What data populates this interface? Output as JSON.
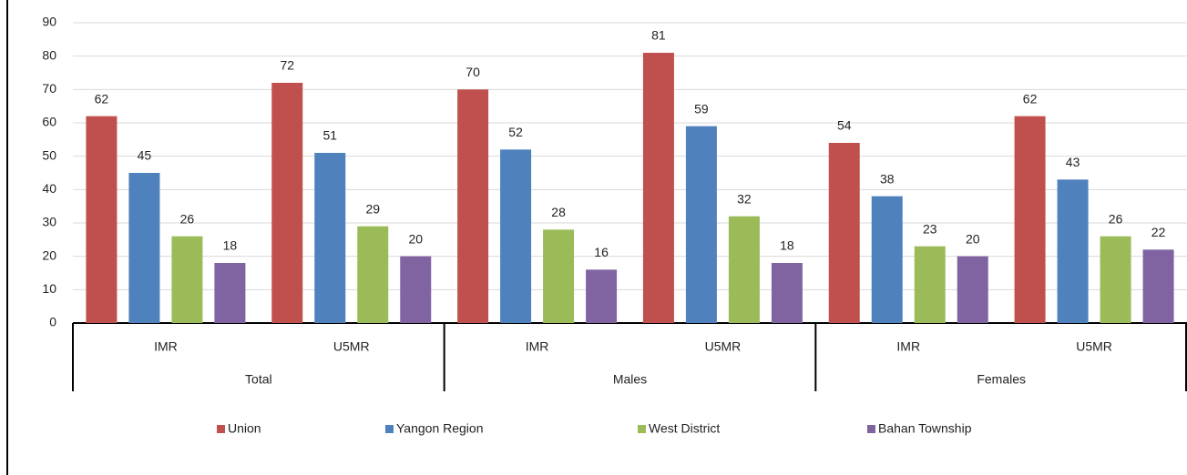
{
  "chart_data": {
    "type": "bar",
    "groups": [
      {
        "name": "Total",
        "categories": [
          "IMR",
          "U5MR"
        ]
      },
      {
        "name": "Males",
        "categories": [
          "IMR",
          "U5MR"
        ]
      },
      {
        "name": "Females",
        "categories": [
          "IMR",
          "U5MR"
        ]
      }
    ],
    "series": [
      {
        "name": "Union",
        "color": "#c0504d",
        "values": [
          62,
          72,
          70,
          81,
          54,
          62
        ]
      },
      {
        "name": "Yangon Region",
        "color": "#4f81bd",
        "values": [
          45,
          51,
          52,
          59,
          38,
          43
        ]
      },
      {
        "name": "West District",
        "color": "#9bbb59",
        "values": [
          26,
          29,
          28,
          32,
          23,
          26
        ]
      },
      {
        "name": "Bahan Township",
        "color": "#8064a2",
        "values": [
          18,
          20,
          16,
          18,
          20,
          22
        ]
      }
    ],
    "ylim": [
      0,
      90
    ],
    "yticks": [
      0,
      10,
      20,
      30,
      40,
      50,
      60,
      70,
      80,
      90
    ],
    "grid": true,
    "legend": "bottom"
  }
}
